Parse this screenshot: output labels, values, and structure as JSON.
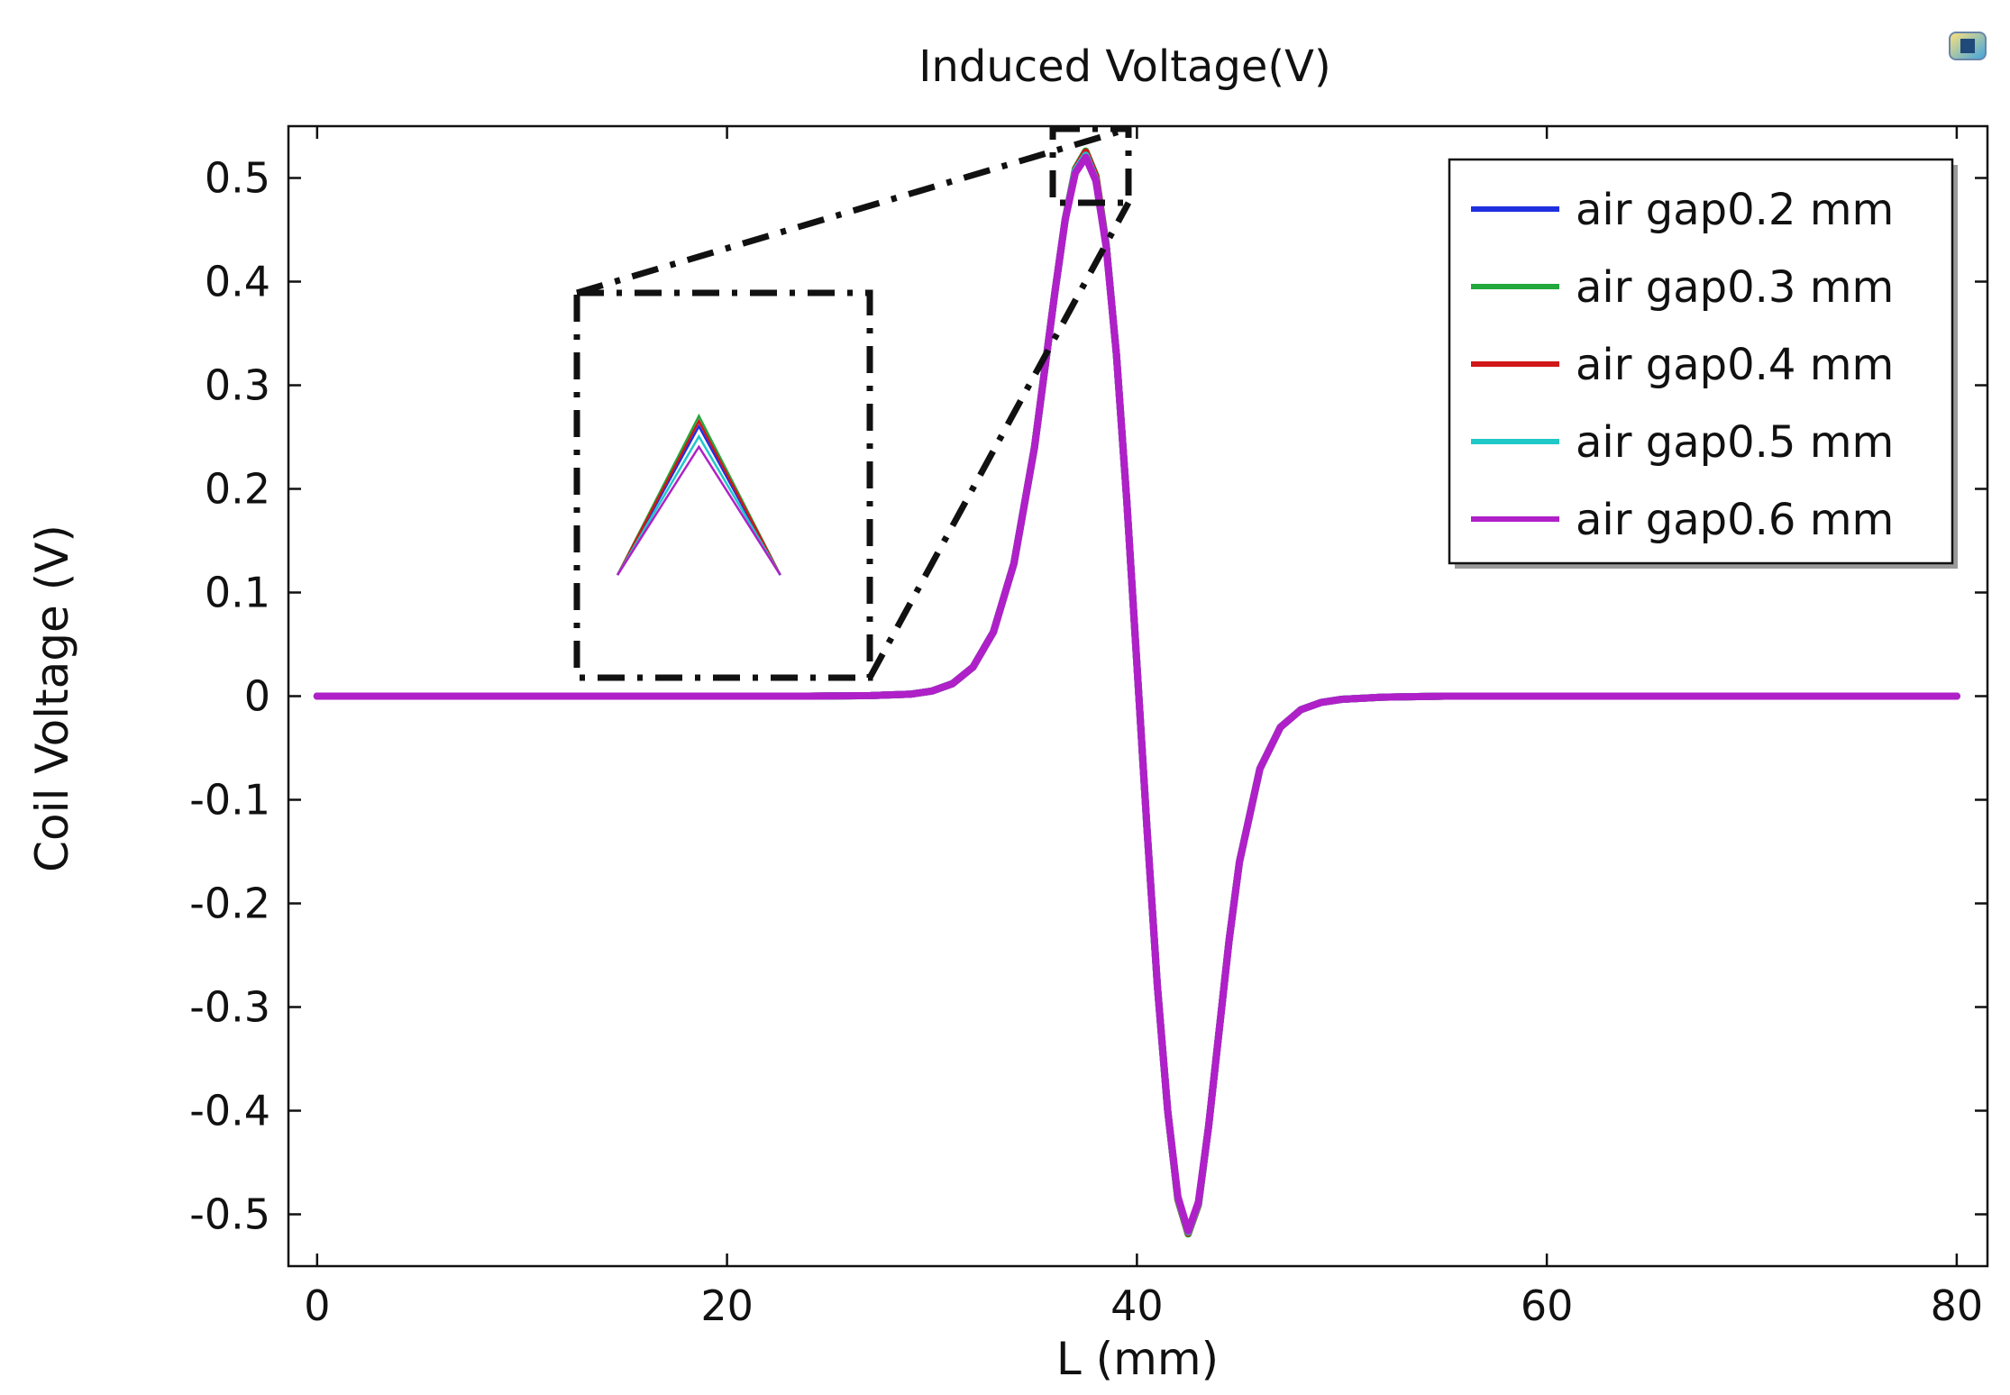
{
  "chart_data": {
    "type": "line",
    "title": "Induced Voltage(V)",
    "xlabel": "L (mm)",
    "ylabel": "Coil Voltage (V)",
    "xlim": [
      -1.4,
      81.5
    ],
    "ylim": [
      -0.55,
      0.55
    ],
    "xticks": [
      0,
      20,
      40,
      60,
      80
    ],
    "yticks": [
      0.5,
      0.4,
      0.3,
      0.2,
      0.1,
      0,
      -0.1,
      -0.2,
      -0.3,
      -0.4,
      -0.5
    ],
    "x": [
      0,
      5,
      10,
      15,
      20,
      24,
      27,
      29,
      30,
      31,
      32,
      33,
      34,
      35,
      36,
      36.5,
      37,
      37.5,
      38,
      38.5,
      39,
      39.5,
      40,
      40.5,
      41,
      41.5,
      42,
      42.5,
      43,
      43.5,
      44,
      44.5,
      45,
      46,
      47,
      48,
      49,
      50,
      52,
      55,
      60,
      70,
      80
    ],
    "series": [
      {
        "name": "air gap0.2 mm",
        "color": "#1f2fe0",
        "values": [
          0,
          0,
          0,
          0,
          0,
          0,
          0.0005,
          0.002,
          0.005,
          0.012,
          0.028,
          0.062,
          0.128,
          0.24,
          0.39,
          0.46,
          0.508,
          0.524,
          0.5,
          0.435,
          0.33,
          0.19,
          0.03,
          -0.13,
          -0.28,
          -0.4,
          -0.485,
          -0.518,
          -0.49,
          -0.415,
          -0.325,
          -0.235,
          -0.16,
          -0.07,
          -0.03,
          -0.013,
          -0.006,
          -0.003,
          -0.001,
          0,
          0,
          0,
          0
        ]
      },
      {
        "name": "air gap0.3 mm",
        "color": "#22a83c",
        "values": [
          0,
          0,
          0,
          0,
          0,
          0,
          0.0005,
          0.002,
          0.005,
          0.012,
          0.028,
          0.062,
          0.128,
          0.24,
          0.39,
          0.46,
          0.509,
          0.526,
          0.502,
          0.436,
          0.33,
          0.19,
          0.03,
          -0.13,
          -0.28,
          -0.4,
          -0.486,
          -0.519,
          -0.491,
          -0.415,
          -0.325,
          -0.235,
          -0.16,
          -0.07,
          -0.03,
          -0.013,
          -0.006,
          -0.003,
          -0.001,
          0,
          0,
          0,
          0
        ]
      },
      {
        "name": "air gap0.4 mm",
        "color": "#d01818",
        "values": [
          0,
          0,
          0,
          0,
          0,
          0,
          0.0005,
          0.002,
          0.005,
          0.012,
          0.028,
          0.062,
          0.128,
          0.24,
          0.39,
          0.46,
          0.508,
          0.525,
          0.501,
          0.435,
          0.33,
          0.19,
          0.03,
          -0.13,
          -0.28,
          -0.4,
          -0.485,
          -0.518,
          -0.49,
          -0.415,
          -0.325,
          -0.235,
          -0.16,
          -0.07,
          -0.03,
          -0.013,
          -0.006,
          -0.003,
          -0.001,
          0,
          0,
          0,
          0
        ]
      },
      {
        "name": "air gap0.5 mm",
        "color": "#20c8c8",
        "values": [
          0,
          0,
          0,
          0,
          0,
          0,
          0.0005,
          0.002,
          0.005,
          0.012,
          0.028,
          0.062,
          0.128,
          0.24,
          0.39,
          0.46,
          0.507,
          0.522,
          0.498,
          0.434,
          0.33,
          0.19,
          0.03,
          -0.13,
          -0.28,
          -0.4,
          -0.484,
          -0.517,
          -0.489,
          -0.415,
          -0.325,
          -0.235,
          -0.16,
          -0.07,
          -0.03,
          -0.013,
          -0.006,
          -0.003,
          -0.001,
          0,
          0,
          0,
          0
        ]
      },
      {
        "name": "air gap0.6 mm",
        "color": "#b020c8",
        "values": [
          0,
          0,
          0,
          0,
          0,
          0,
          0.0005,
          0.002,
          0.005,
          0.012,
          0.028,
          0.062,
          0.128,
          0.24,
          0.39,
          0.46,
          0.505,
          0.52,
          0.497,
          0.433,
          0.33,
          0.19,
          0.03,
          -0.13,
          -0.28,
          -0.4,
          -0.483,
          -0.516,
          -0.488,
          -0.415,
          -0.325,
          -0.235,
          -0.16,
          -0.07,
          -0.03,
          -0.013,
          -0.006,
          -0.003,
          -0.001,
          0,
          0,
          0,
          0
        ]
      }
    ],
    "zoom_source": {
      "xlim": [
        36,
        39.6
      ],
      "ylim": [
        0.475,
        0.55
      ]
    },
    "legend": "top-right",
    "grid": false
  }
}
